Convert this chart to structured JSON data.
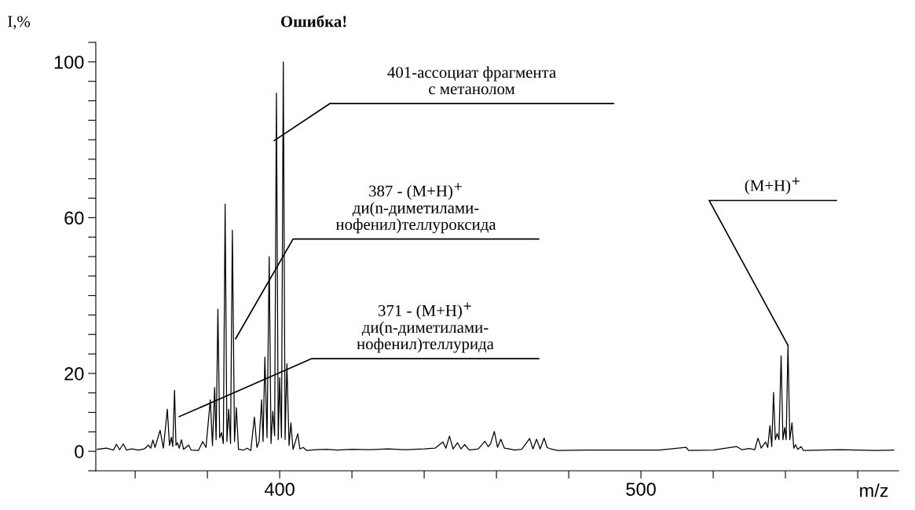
{
  "chart_data": {
    "type": "line",
    "title": "Ошибка!",
    "xlabel": "m/z",
    "ylabel": "I,%",
    "x": [
      349.5,
      352,
      354,
      354.8,
      355.7,
      356.7,
      357.6,
      359,
      361,
      362.5,
      363.7,
      364.3,
      364.9,
      365.5,
      366.9,
      367.8,
      368.9,
      369.5,
      370.0,
      370.4,
      370.9,
      371.3,
      371.7,
      372.2,
      372.8,
      373.4,
      374.8,
      375.5,
      377.5,
      378.7,
      379.6,
      380.8,
      381.4,
      382.0,
      382.4,
      382.9,
      383.4,
      383.9,
      384.4,
      384.9,
      385.4,
      385.9,
      386.4,
      386.9,
      387.5,
      388.0,
      388.6,
      390,
      391,
      392,
      393.0,
      393.7,
      394.3,
      395.0,
      395.4,
      395.9,
      396.5,
      397.1,
      397.6,
      398.1,
      398.6,
      399.1,
      399.6,
      400.0,
      400.5,
      401.0,
      401.5,
      402.0,
      402.6,
      403.1,
      403.7,
      405.0,
      405.6,
      406.5,
      407.5,
      410,
      413,
      416,
      420,
      425,
      430,
      435,
      440,
      443,
      445.2,
      446,
      447.0,
      448,
      449.2,
      450.2,
      451.2,
      452.5,
      455,
      456.8,
      457.7,
      458.4,
      459.4,
      460.3,
      461.2,
      462.2,
      463.5,
      465,
      467,
      469.2,
      470.1,
      471.1,
      472.1,
      473.2,
      474,
      475,
      477,
      485,
      495,
      505,
      512.5,
      513.2,
      520,
      526.5,
      528,
      530,
      531.5,
      532.4,
      533.3,
      534.5,
      535.1,
      535.7,
      536.2,
      536.7,
      537.2,
      537.7,
      538.2,
      538.8,
      539.3,
      539.8,
      540.2,
      540.7,
      541.2,
      541.8,
      542.3,
      542.8,
      543.4,
      544.3,
      545,
      550,
      555,
      560,
      565,
      570
    ],
    "series": [
      {
        "color": "#000000",
        "values": [
          0.5,
          0.8,
          0.3,
          1.8,
          0.4,
          1.9,
          0.3,
          0.6,
          0.3,
          0.6,
          1.6,
          0.8,
          2.9,
          1.0,
          5.4,
          0.8,
          10.8,
          1.5,
          3.6,
          1.2,
          15.7,
          1.5,
          2.2,
          0.8,
          3.0,
          0.5,
          1.6,
          0.3,
          0.2,
          2.5,
          1.0,
          13.2,
          1.5,
          16.4,
          3.0,
          36.5,
          3.5,
          4.8,
          2.0,
          63.5,
          2.5,
          10.8,
          2.0,
          56.8,
          2.5,
          11.2,
          0.5,
          0.3,
          0.8,
          0.2,
          8.8,
          1.0,
          2.5,
          13.2,
          2.5,
          24.2,
          3.5,
          50,
          2.0,
          10.3,
          4.0,
          92.0,
          3.0,
          18.9,
          3.5,
          100,
          3.0,
          22.5,
          1.5,
          7.3,
          0.5,
          4.5,
          0.6,
          1.0,
          0.2,
          0.4,
          0.5,
          0.3,
          0.5,
          0.4,
          0.6,
          0.4,
          0.6,
          0.8,
          2.4,
          0.8,
          3.9,
          0.6,
          2.2,
          0.6,
          1.7,
          0.3,
          0.6,
          2.6,
          1.2,
          2.0,
          5.1,
          1.0,
          3.1,
          0.8,
          0.6,
          0.3,
          0.5,
          3.3,
          0.6,
          3.1,
          0.6,
          3.4,
          1.0,
          0.6,
          0.2,
          0.3,
          0.3,
          0.3,
          1.0,
          0.2,
          0.3,
          1.2,
          0.4,
          0.7,
          0.4,
          3.4,
          0.8,
          2.4,
          1.0,
          6.6,
          1.2,
          15.1,
          3.0,
          4.6,
          3.0,
          24.5,
          3.0,
          6.1,
          3.0,
          27.2,
          3.0,
          7.3,
          0.8,
          1.7,
          0.5,
          1.2,
          0.2,
          0.3,
          0.4,
          0.3,
          0.2,
          0.3
        ]
      }
    ],
    "xlim": [
      349.1,
      571.3
    ],
    "ylim": [
      -5,
      105
    ],
    "xticks": [
      {
        "value": 360,
        "label": null
      },
      {
        "value": 380,
        "label": null
      },
      400,
      {
        "value": 420,
        "label": null
      },
      {
        "value": 440,
        "label": null
      },
      {
        "value": 460,
        "label": null
      },
      {
        "value": 480,
        "label": null
      },
      500,
      {
        "value": 520,
        "label": null
      },
      {
        "value": 540,
        "label": null
      },
      {
        "value": 560,
        "label": null
      }
    ],
    "yticks": [
      {
        "value": -5,
        "label": null
      },
      0,
      {
        "value": 5,
        "label": null
      },
      {
        "value": 10,
        "label": null
      },
      {
        "value": 15,
        "label": null
      },
      20,
      {
        "value": 25,
        "label": null
      },
      {
        "value": 30,
        "label": null
      },
      {
        "value": 35,
        "label": null
      },
      {
        "value": 40,
        "label": null
      },
      {
        "value": 45,
        "label": null
      },
      {
        "value": 50,
        "label": null
      },
      {
        "value": 55,
        "label": null
      },
      60,
      {
        "value": 65,
        "label": null
      },
      {
        "value": 70,
        "label": null
      },
      {
        "value": 75,
        "label": null
      },
      {
        "value": 80,
        "label": null
      },
      {
        "value": 85,
        "label": null
      },
      {
        "value": 90,
        "label": null
      },
      {
        "value": 95,
        "label": null
      },
      100,
      {
        "value": 105,
        "label": null
      }
    ],
    "grid": false,
    "marker": "none",
    "line_style": "solid",
    "annotations": [
      {
        "text": "401-ассоциат фрагмента\nс метанолом",
        "x": 398.5,
        "y": 79.8
      },
      {
        "text": "387 - (M+H)$^{+}$\nди(n-диметилами-\nнофенил)теллуроксида",
        "x": 387.8,
        "y": 28.9
      },
      {
        "text": "371 - (M+H)$^{+}$\nди(n-диметилами-\nнофенил)теллурида",
        "x": 372.2,
        "y": 8.9
      },
      {
        "text": "(M+H)$^{+}$",
        "x": 540.7,
        "y": 27.2
      }
    ]
  }
}
